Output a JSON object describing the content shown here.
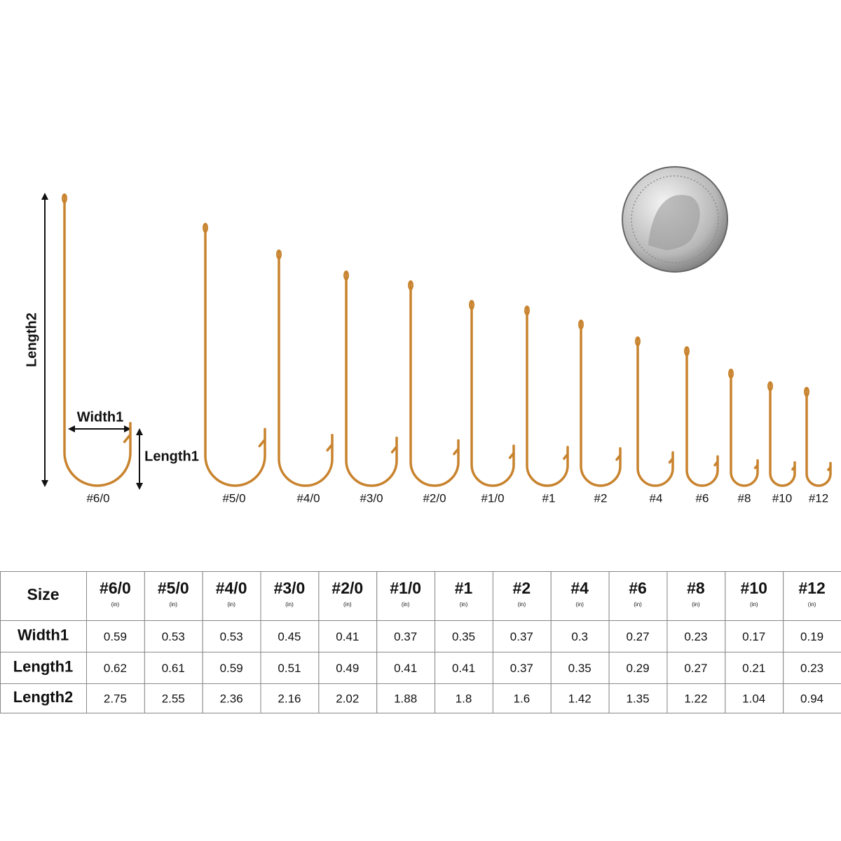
{
  "diagram": {
    "dimension_labels": {
      "length2": "Length2",
      "width1": "Width1",
      "length1": "Length1"
    },
    "hook_labels": [
      "#6/0",
      "#5/0",
      "#4/0",
      "#3/0",
      "#2/0",
      "#1/0",
      "#1",
      "#2",
      "#4",
      "#6",
      "#8",
      "#10",
      "#12"
    ]
  },
  "table": {
    "header": [
      "Size",
      "#6/0",
      "#5/0",
      "#4/0",
      "#3/0",
      "#2/0",
      "#1/0",
      "#1",
      "#2",
      "#4",
      "#6",
      "#8",
      "#10",
      "#12"
    ],
    "unit": "(in)",
    "rows": [
      [
        "Width1",
        "0.59",
        "0.53",
        "0.53",
        "0.45",
        "0.41",
        "0.37",
        "0.35",
        "0.37",
        "0.3",
        "0.27",
        "0.23",
        "0.17",
        "0.19"
      ],
      [
        "Length1",
        "0.62",
        "0.61",
        "0.59",
        "0.51",
        "0.49",
        "0.41",
        "0.41",
        "0.37",
        "0.35",
        "0.29",
        "0.27",
        "0.21",
        "0.23"
      ],
      [
        "Length2",
        "2.75",
        "2.55",
        "2.36",
        "2.16",
        "2.02",
        "1.88",
        "1.8",
        "1.6",
        "1.42",
        "1.35",
        "1.22",
        "1.04",
        "0.94"
      ]
    ]
  }
}
